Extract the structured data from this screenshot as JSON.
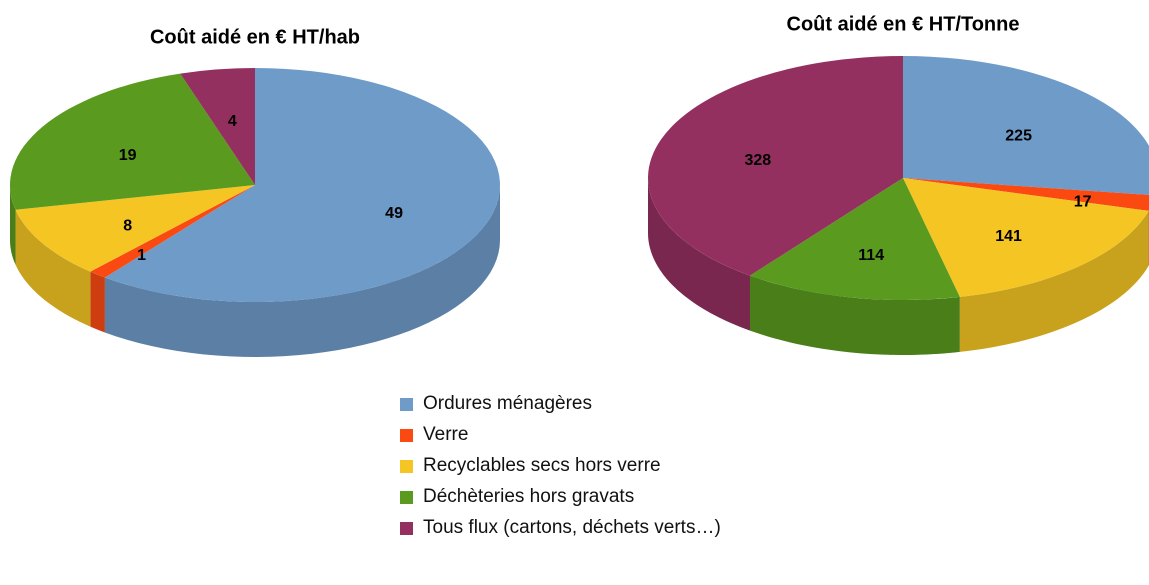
{
  "chart_data": [
    {
      "type": "pie",
      "title": "Coût aidé en € HT/hab",
      "categories": [
        "Ordures ménagères",
        "Verre",
        "Recyclables secs hors verre",
        "Déchèteries hors gravats",
        "Tous flux (cartons, déchets verts…)"
      ],
      "values": [
        49,
        1,
        8,
        19,
        4
      ],
      "colors": [
        "#6f9bc9",
        "#fa4a12",
        "#f5c623",
        "#5a9a1f",
        "#94305f"
      ]
    },
    {
      "type": "pie",
      "title": "Coût aidé en € HT/Tonne",
      "values": [
        225,
        17,
        141,
        114,
        328
      ],
      "colors": [
        "#6f9bc9",
        "#fa4a12",
        "#f5c623",
        "#5a9a1f",
        "#94305f"
      ]
    }
  ]
}
